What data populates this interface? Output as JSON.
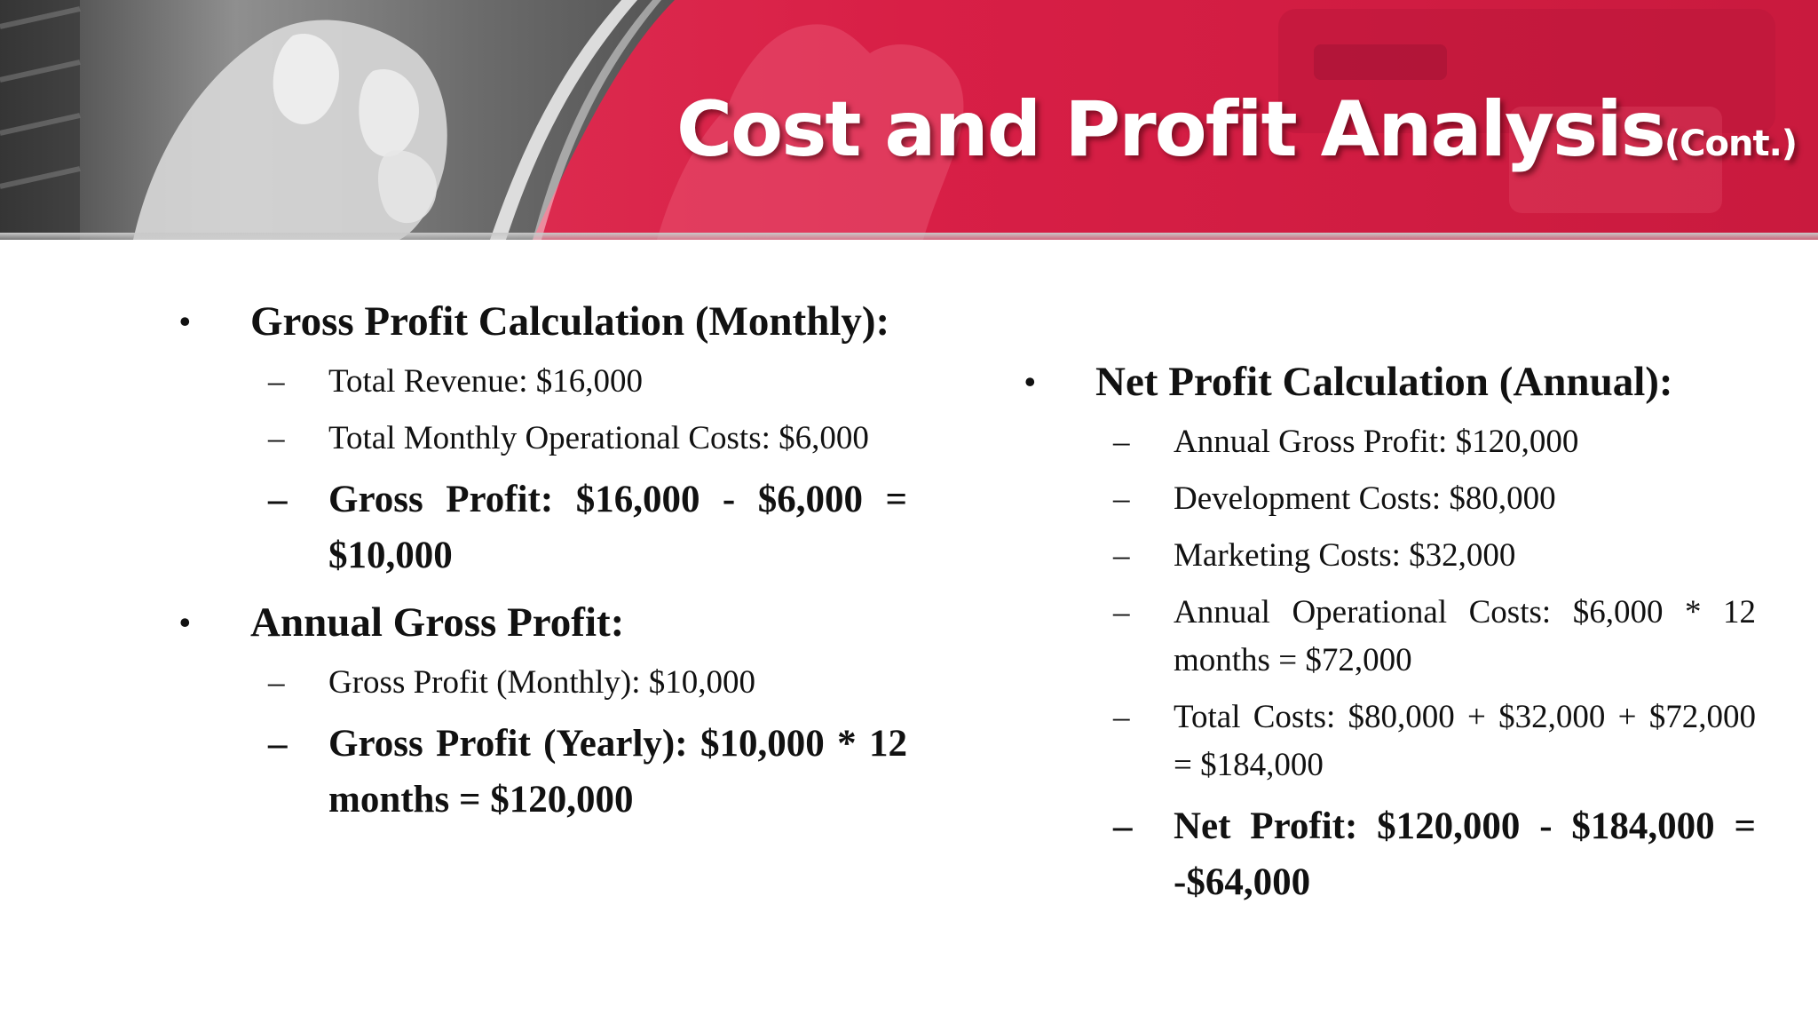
{
  "slide": {
    "title": "Cost and Profit Analysis",
    "title_suffix": "(Cont.)",
    "colors": {
      "header_red": "#d42045",
      "text": "#111111",
      "title": "#ffffff"
    }
  },
  "left": {
    "bullet1": "Gross Profit Calculation (Monthly):",
    "items1": [
      "Total Revenue: $16,000",
      "Total Monthly Operational Costs: $6,000",
      "Gross Profit: $16,000 - $6,000 = $10,000"
    ],
    "bullet2": "Annual Gross Profit:",
    "items2": [
      "Gross Profit (Monthly): $10,000",
      "Gross Profit (Yearly): $10,000 * 12 months = $120,000"
    ]
  },
  "right": {
    "bullet1": "Net Profit Calculation (Annual):",
    "items1": [
      "Annual Gross Profit: $120,000",
      "Development Costs: $80,000",
      "Marketing Costs: $32,000",
      "Annual Operational Costs: $6,000 * 12 months = $72,000",
      "Total Costs: $80,000 + $32,000 + $72,000 = $184,000",
      "Net Profit: $120,000 - $184,000 = -$64,000"
    ]
  },
  "symbols": {
    "bullet": "•",
    "dash": "–"
  }
}
